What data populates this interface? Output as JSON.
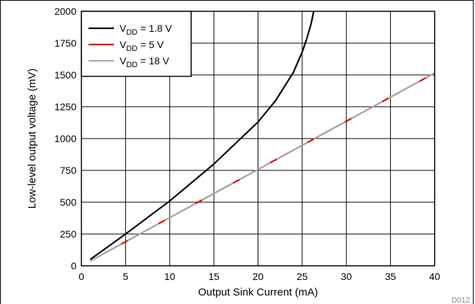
{
  "chart_data": {
    "type": "line",
    "xlabel": "Output Sink Current (mA)",
    "ylabel": "Low-level output voltage (mV)",
    "xlim": [
      0,
      40
    ],
    "ylim": [
      0,
      2000
    ],
    "x_ticks": [
      "0",
      "5",
      "10",
      "15",
      "20",
      "25",
      "30",
      "35",
      "40"
    ],
    "y_ticks": [
      "0",
      "250",
      "500",
      "750",
      "1000",
      "1250",
      "1500",
      "1750",
      "2000"
    ],
    "grid": true,
    "legend_position": "top-left",
    "series": [
      {
        "name": "VDD = 1.8 V",
        "legend": {
          "main": "V",
          "sub": "DD",
          "rest": " = 1.8 V"
        },
        "color": "#000000",
        "style": "solid",
        "x": [
          1,
          5,
          10,
          15,
          20,
          22,
          24,
          25,
          25.5,
          26,
          26.3
        ],
        "y": [
          50,
          250,
          510,
          800,
          1130,
          1300,
          1520,
          1680,
          1780,
          1900,
          2000
        ]
      },
      {
        "name": "VDD = 5 V",
        "legend": {
          "main": "V",
          "sub": "DD",
          "rest": " = 5 V"
        },
        "color": "#e00000",
        "style": "solid",
        "x": [
          1,
          40
        ],
        "y": [
          38,
          1515
        ]
      },
      {
        "name": "VDD = 18 V",
        "legend": {
          "main": "V",
          "sub": "DD",
          "rest": " = 18 V"
        },
        "color": "#aaaaaa",
        "style": "dashed",
        "x": [
          1,
          40
        ],
        "y": [
          38,
          1515
        ]
      }
    ]
  },
  "figure_id": "D012"
}
